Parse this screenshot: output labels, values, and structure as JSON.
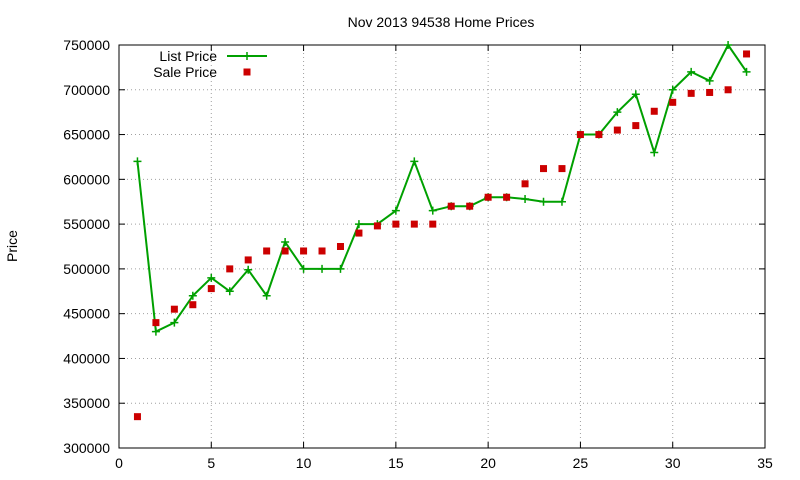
{
  "chart_data": {
    "type": "line",
    "title": "Nov 2013 94538 Home Prices",
    "xlabel": "",
    "ylabel": "Price",
    "xlim": [
      0,
      35
    ],
    "ylim": [
      300000,
      750000
    ],
    "x_ticks": [
      0,
      5,
      10,
      15,
      20,
      25,
      30,
      35
    ],
    "y_ticks": [
      300000,
      350000,
      400000,
      450000,
      500000,
      550000,
      600000,
      650000,
      700000,
      750000
    ],
    "grid": true,
    "legend_position": "top-left",
    "series": [
      {
        "name": "List Price",
        "style": "linespoints",
        "color": "#00a000",
        "marker": "plus",
        "points": [
          [
            1,
            620000
          ],
          [
            2,
            430000
          ],
          [
            3,
            440000
          ],
          [
            4,
            470000
          ],
          [
            5,
            490000
          ],
          [
            6,
            475000
          ],
          [
            7,
            499000
          ],
          [
            8,
            470000
          ],
          [
            9,
            530000
          ],
          [
            10,
            500000
          ],
          [
            11,
            500000
          ],
          [
            12,
            500000
          ],
          [
            13,
            550000
          ],
          [
            14,
            550000
          ],
          [
            15,
            565000
          ],
          [
            16,
            620000
          ],
          [
            17,
            565000
          ],
          [
            18,
            570000
          ],
          [
            19,
            570000
          ],
          [
            20,
            580000
          ],
          [
            21,
            580000
          ],
          [
            22,
            578000
          ],
          [
            23,
            575000
          ],
          [
            24,
            575000
          ],
          [
            25,
            650000
          ],
          [
            26,
            650000
          ],
          [
            27,
            675000
          ],
          [
            28,
            695000
          ],
          [
            29,
            630000
          ],
          [
            30,
            700000
          ],
          [
            31,
            720000
          ],
          [
            32,
            710000
          ],
          [
            33,
            750000
          ],
          [
            34,
            720000
          ]
        ]
      },
      {
        "name": "Sale Price",
        "style": "points",
        "color": "#cc0000",
        "marker": "square",
        "points": [
          [
            1,
            335000
          ],
          [
            2,
            440000
          ],
          [
            3,
            455000
          ],
          [
            4,
            460000
          ],
          [
            5,
            478000
          ],
          [
            6,
            500000
          ],
          [
            7,
            510000
          ],
          [
            8,
            520000
          ],
          [
            9,
            520000
          ],
          [
            10,
            520000
          ],
          [
            11,
            520000
          ],
          [
            12,
            525000
          ],
          [
            13,
            540000
          ],
          [
            14,
            548000
          ],
          [
            15,
            550000
          ],
          [
            16,
            550000
          ],
          [
            17,
            550000
          ],
          [
            18,
            570000
          ],
          [
            19,
            570000
          ],
          [
            20,
            580000
          ],
          [
            21,
            580000
          ],
          [
            22,
            595000
          ],
          [
            23,
            612000
          ],
          [
            24,
            612000
          ],
          [
            25,
            650000
          ],
          [
            26,
            650000
          ],
          [
            27,
            655000
          ],
          [
            28,
            660000
          ],
          [
            29,
            676000
          ],
          [
            30,
            686000
          ],
          [
            31,
            696000
          ],
          [
            32,
            697000
          ],
          [
            33,
            700000
          ],
          [
            34,
            740000
          ]
        ]
      }
    ]
  }
}
